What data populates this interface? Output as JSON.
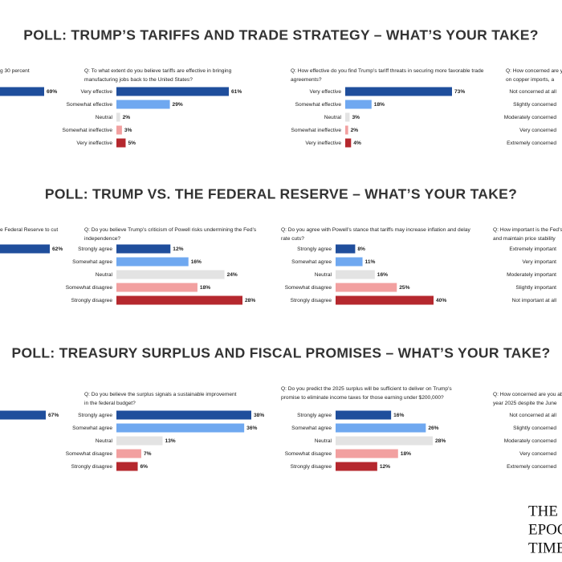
{
  "headings": [
    "POLL: TRUMP’S TARIFFS AND TRADE STRATEGY – WHAT’S YOUR TAKE?",
    "POLL: TRUMP VS. THE FEDERAL RESERVE – WHAT’S YOUR TAKE?",
    "POLL: TREASURY SURPLUS AND FISCAL PROMISES – WHAT’S YOUR TAKE?"
  ],
  "logo": [
    "THE",
    "EPOC",
    "TIME"
  ],
  "chart_data": [
    {
      "type": "bar",
      "title": [
        "g 30 percent"
      ],
      "categories": [
        null
      ],
      "values": [
        69
      ],
      "value_labels": [
        "69%"
      ],
      "colors": [
        "#1f4e9c"
      ]
    },
    {
      "type": "bar",
      "title": [
        "Q: To what extent do you believe tariffs are effective in bringing",
        "manufacturing jobs back to the United States?"
      ],
      "categories": [
        "Very effective",
        "Somewhat effective",
        "Neutral",
        "Somewhat ineffective",
        "Very ineffective"
      ],
      "values": [
        61,
        29,
        2,
        3,
        5
      ],
      "value_labels": [
        "61%",
        "29%",
        "2%",
        "3%",
        "5%"
      ],
      "colors": [
        "#1f4e9c",
        "#6fa8f0",
        "#e3e3e3",
        "#f2a0a0",
        "#b5282e"
      ]
    },
    {
      "type": "bar",
      "title": [
        "Q: How effective do you find Trump’s tariff threats in securing more favorable trade",
        "agreements?"
      ],
      "categories": [
        "Very effective",
        "Somewhat effective",
        "Neutral",
        "Somewhat ineffective",
        "Very ineffective"
      ],
      "values": [
        73,
        18,
        3,
        2,
        4
      ],
      "value_labels": [
        "73%",
        "18%",
        "3%",
        "2%",
        "4%"
      ],
      "colors": [
        "#1f4e9c",
        "#6fa8f0",
        "#e3e3e3",
        "#f2a0a0",
        "#b5282e"
      ]
    },
    {
      "type": "bar",
      "title": [
        "Q: How concerned are y",
        "on copper imports, a"
      ],
      "categories": [
        "Not concerned at all",
        "Slightly concerned",
        "Moderately concerned",
        "Very concerned",
        "Extremely concerned"
      ],
      "values": [
        null,
        null,
        null,
        null,
        null
      ]
    },
    {
      "type": "bar",
      "title": [
        "e Federal Reserve to cut"
      ],
      "categories": [
        null
      ],
      "values": [
        62
      ],
      "value_labels": [
        "62%"
      ],
      "colors": [
        "#1f4e9c"
      ]
    },
    {
      "type": "bar",
      "title": [
        "Q: Do you believe Trump’s criticism of Powell risks undermining the Fed’s",
        "independence?"
      ],
      "categories": [
        "Strongly agree",
        "Somewhat agree",
        "Neutral",
        "Somewhat disagree",
        "Strongly disagree"
      ],
      "values": [
        12,
        16,
        24,
        18,
        28
      ],
      "value_labels": [
        "12%",
        "16%",
        "24%",
        "18%",
        "28%"
      ],
      "colors": [
        "#1f4e9c",
        "#6fa8f0",
        "#e3e3e3",
        "#f2a0a0",
        "#b5282e"
      ]
    },
    {
      "type": "bar",
      "title": [
        "Q: Do you agree with Powell’s stance that tariffs may increase inflation and delay",
        "rate cuts?"
      ],
      "categories": [
        "Strongly agree",
        "Somewhat agree",
        "Neutral",
        "Somewhat disagree",
        "Strongly disagree"
      ],
      "values": [
        8,
        11,
        16,
        25,
        40
      ],
      "value_labels": [
        "8%",
        "11%",
        "16%",
        "25%",
        "40%"
      ],
      "colors": [
        "#1f4e9c",
        "#6fa8f0",
        "#e3e3e3",
        "#f2a0a0",
        "#b5282e"
      ]
    },
    {
      "type": "bar",
      "title": [
        "Q: How important is the Fed’s",
        "and maintain price stability"
      ],
      "categories": [
        "Extremely important",
        "Very important",
        "Moderately important",
        "Slightly important",
        "Not important at all"
      ],
      "values": [
        null,
        null,
        null,
        null,
        null
      ]
    },
    {
      "type": "bar",
      "categories": [
        null
      ],
      "values": [
        67
      ],
      "value_labels": [
        "67%"
      ],
      "colors": [
        "#1f4e9c"
      ]
    },
    {
      "type": "bar",
      "title": [
        "Q: Do you believe the surplus signals a sustainable improvement",
        "in the federal budget?"
      ],
      "categories": [
        "Strongly agree",
        "Somewhat agree",
        "Neutral",
        "Somewhat disagree",
        "Strongly disagree"
      ],
      "values": [
        38,
        36,
        13,
        7,
        6
      ],
      "value_labels": [
        "38%",
        "36%",
        "13%",
        "7%",
        "6%"
      ],
      "colors": [
        "#1f4e9c",
        "#6fa8f0",
        "#e3e3e3",
        "#f2a0a0",
        "#b5282e"
      ]
    },
    {
      "type": "bar",
      "title": [
        "Q: Do you predict the 2025 surplus will be sufficient to deliver on Trump’s",
        "promise to eliminate income taxes for those earning under $200,000?"
      ],
      "categories": [
        "Strongly agree",
        "Somewhat agree",
        "Neutral",
        "Somewhat disagree",
        "Strongly disagree"
      ],
      "values": [
        16,
        26,
        28,
        18,
        12
      ],
      "value_labels": [
        "16%",
        "26%",
        "28%",
        "18%",
        "12%"
      ],
      "colors": [
        "#1f4e9c",
        "#6fa8f0",
        "#e3e3e3",
        "#f2a0a0",
        "#b5282e"
      ]
    },
    {
      "type": "bar",
      "title": [
        "Q: How concerned are you abo",
        "year 2025 despite the June"
      ],
      "categories": [
        "Not concerned at all",
        "Slightly concerned",
        "Moderately concerned",
        "Very concerned",
        "Extremely concerned"
      ],
      "values": [
        null,
        null,
        null,
        null,
        null
      ]
    }
  ]
}
